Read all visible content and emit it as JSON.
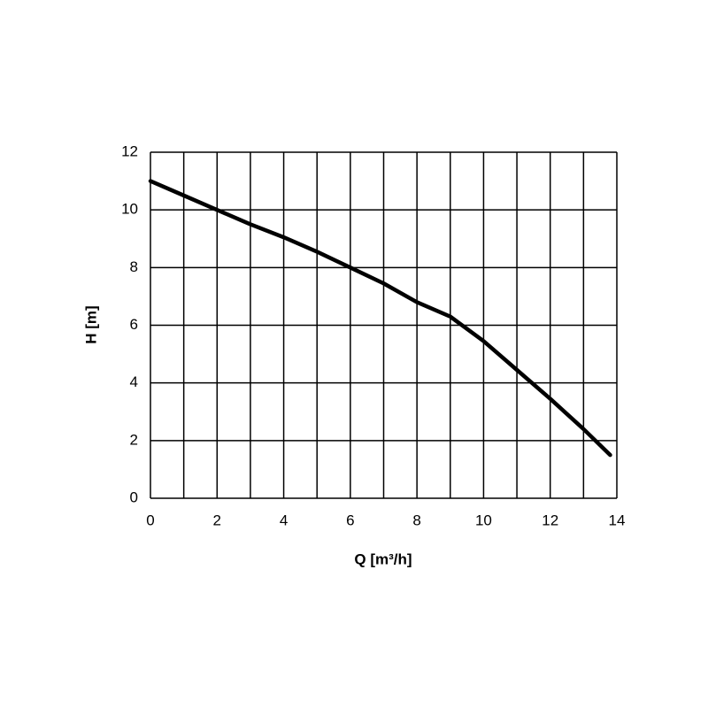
{
  "chart_data": {
    "type": "line",
    "x_label": "Q [m³/h]",
    "y_label": "H [m]",
    "x": [
      0,
      1,
      2,
      3,
      4,
      5,
      6,
      7,
      8,
      9,
      10,
      11,
      12,
      13,
      13.8
    ],
    "series": [
      {
        "color": "#000000",
        "values": [
          11,
          10.5,
          10,
          9.5,
          9.05,
          8.55,
          8.0,
          7.45,
          6.8,
          6.3,
          5.45,
          4.45,
          3.45,
          2.4,
          1.5
        ]
      }
    ],
    "xlim": [
      0,
      14
    ],
    "xticks": [
      0,
      2,
      4,
      6,
      8,
      10,
      12,
      14
    ],
    "x_minor_ticks": [
      1,
      3,
      5,
      7,
      9,
      11,
      13
    ],
    "ylim": [
      0,
      12
    ],
    "yticks": [
      0,
      2,
      4,
      6,
      8,
      10,
      12
    ],
    "grid": true
  }
}
